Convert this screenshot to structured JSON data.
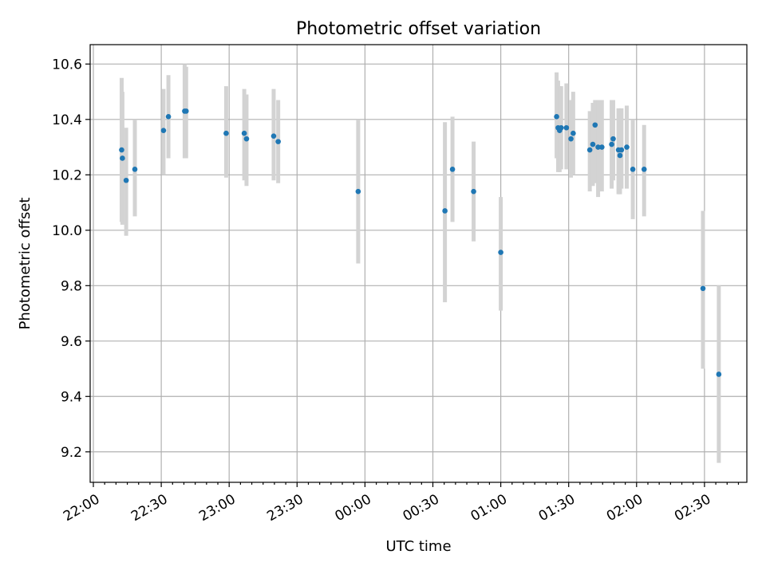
{
  "chart_data": {
    "type": "scatter",
    "title": "Photometric offset variation",
    "xlabel": "UTC time",
    "ylabel": "Photometric offset",
    "x_axis": {
      "kind": "time",
      "ticks": [
        "22:00",
        "22:30",
        "23:00",
        "23:30",
        "00:00",
        "00:30",
        "01:00",
        "01:30",
        "02:00",
        "02:30"
      ]
    },
    "y_axis": {
      "range": [
        9.09,
        10.67
      ],
      "ticks": [
        "9.2",
        "9.4",
        "9.6",
        "9.8",
        "10.0",
        "10.2",
        "10.4",
        "10.6"
      ]
    },
    "grid": true,
    "colors": {
      "marker": "#1f77b4",
      "errorbar": "#d3d3d3"
    },
    "points": [
      {
        "t": "22:12:30",
        "y": 10.29,
        "lo": 10.03,
        "hi": 10.55
      },
      {
        "t": "22:12:50",
        "y": 10.26,
        "lo": 10.02,
        "hi": 10.5
      },
      {
        "t": "22:14:30",
        "y": 10.18,
        "lo": 9.98,
        "hi": 10.37
      },
      {
        "t": "22:18:20",
        "y": 10.22,
        "lo": 10.05,
        "hi": 10.4
      },
      {
        "t": "22:31:00",
        "y": 10.36,
        "lo": 10.2,
        "hi": 10.51
      },
      {
        "t": "22:33:10",
        "y": 10.41,
        "lo": 10.26,
        "hi": 10.56
      },
      {
        "t": "22:40:20",
        "y": 10.43,
        "lo": 10.26,
        "hi": 10.6
      },
      {
        "t": "22:41:00",
        "y": 10.43,
        "lo": 10.26,
        "hi": 10.59
      },
      {
        "t": "22:58:40",
        "y": 10.35,
        "lo": 10.19,
        "hi": 10.52
      },
      {
        "t": "23:06:40",
        "y": 10.35,
        "lo": 10.18,
        "hi": 10.51
      },
      {
        "t": "23:07:40",
        "y": 10.33,
        "lo": 10.16,
        "hi": 10.49
      },
      {
        "t": "23:19:40",
        "y": 10.34,
        "lo": 10.18,
        "hi": 10.51
      },
      {
        "t": "23:21:40",
        "y": 10.32,
        "lo": 10.17,
        "hi": 10.47
      },
      {
        "t": "23:57:00",
        "y": 10.14,
        "lo": 9.88,
        "hi": 10.4
      },
      {
        "t": "00:35:20",
        "y": 10.07,
        "lo": 9.74,
        "hi": 10.39
      },
      {
        "t": "00:38:40",
        "y": 10.22,
        "lo": 10.03,
        "hi": 10.41
      },
      {
        "t": "00:48:00",
        "y": 10.14,
        "lo": 9.96,
        "hi": 10.32
      },
      {
        "t": "01:00:00",
        "y": 9.92,
        "lo": 9.71,
        "hi": 10.12
      },
      {
        "t": "01:24:40",
        "y": 10.41,
        "lo": 10.26,
        "hi": 10.57
      },
      {
        "t": "01:25:20",
        "y": 10.37,
        "lo": 10.21,
        "hi": 10.54
      },
      {
        "t": "01:26:00",
        "y": 10.36,
        "lo": 10.21,
        "hi": 10.52
      },
      {
        "t": "01:26:40",
        "y": 10.37,
        "lo": 10.22,
        "hi": 10.52
      },
      {
        "t": "01:29:00",
        "y": 10.37,
        "lo": 10.22,
        "hi": 10.53
      },
      {
        "t": "01:31:00",
        "y": 10.33,
        "lo": 10.19,
        "hi": 10.47
      },
      {
        "t": "01:32:00",
        "y": 10.35,
        "lo": 10.2,
        "hi": 10.5
      },
      {
        "t": "01:39:20",
        "y": 10.29,
        "lo": 10.14,
        "hi": 10.43
      },
      {
        "t": "01:40:40",
        "y": 10.31,
        "lo": 10.16,
        "hi": 10.46
      },
      {
        "t": "01:41:40",
        "y": 10.38,
        "lo": 10.17,
        "hi": 10.47
      },
      {
        "t": "01:43:00",
        "y": 10.3,
        "lo": 10.12,
        "hi": 10.47
      },
      {
        "t": "01:44:40",
        "y": 10.3,
        "lo": 10.14,
        "hi": 10.47
      },
      {
        "t": "01:49:00",
        "y": 10.31,
        "lo": 10.15,
        "hi": 10.47
      },
      {
        "t": "01:49:40",
        "y": 10.33,
        "lo": 10.18,
        "hi": 10.47
      },
      {
        "t": "01:52:00",
        "y": 10.29,
        "lo": 10.13,
        "hi": 10.44
      },
      {
        "t": "01:52:40",
        "y": 10.27,
        "lo": 10.13,
        "hi": 10.43
      },
      {
        "t": "01:53:20",
        "y": 10.29,
        "lo": 10.15,
        "hi": 10.44
      },
      {
        "t": "01:55:40",
        "y": 10.3,
        "lo": 10.15,
        "hi": 10.45
      },
      {
        "t": "01:58:20",
        "y": 10.22,
        "lo": 10.04,
        "hi": 10.4
      },
      {
        "t": "02:03:20",
        "y": 10.22,
        "lo": 10.05,
        "hi": 10.38
      },
      {
        "t": "02:29:20",
        "y": 9.79,
        "lo": 9.5,
        "hi": 10.07
      },
      {
        "t": "02:36:20",
        "y": 9.48,
        "lo": 9.16,
        "hi": 9.8
      }
    ]
  }
}
